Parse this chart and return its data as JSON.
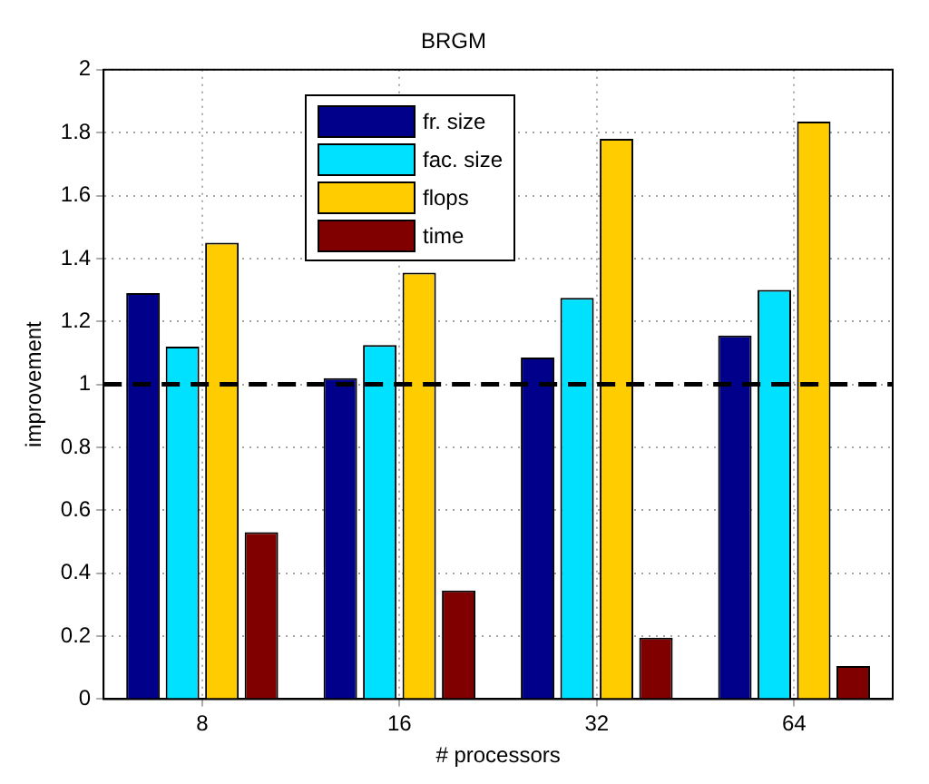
{
  "chart_data": {
    "type": "bar",
    "title": "BRGM",
    "xlabel": "# processors",
    "ylabel": "improvement",
    "categories": [
      "8",
      "16",
      "32",
      "64"
    ],
    "series": [
      {
        "name": "fr. size",
        "color": "#00008b",
        "values": [
          1.29,
          1.02,
          1.085,
          1.155
        ]
      },
      {
        "name": "fac. size",
        "color": "#00e0ff",
        "values": [
          1.12,
          1.125,
          1.275,
          1.3
        ]
      },
      {
        "name": "flops",
        "color": "#ffcc00",
        "values": [
          1.45,
          1.355,
          1.78,
          1.835
        ]
      },
      {
        "name": "time",
        "color": "#800000",
        "values": [
          0.53,
          0.345,
          0.195,
          0.105
        ]
      }
    ],
    "ylim": [
      0,
      2
    ],
    "yticks": [
      0,
      0.2,
      0.4,
      0.6,
      0.8,
      1,
      1.2,
      1.4,
      1.6,
      1.8,
      2
    ],
    "grid": true,
    "legend": "top left",
    "ref_lines": [
      {
        "axis": "y",
        "value": 1,
        "color": "#000000",
        "line_style": "dashed"
      }
    ]
  }
}
